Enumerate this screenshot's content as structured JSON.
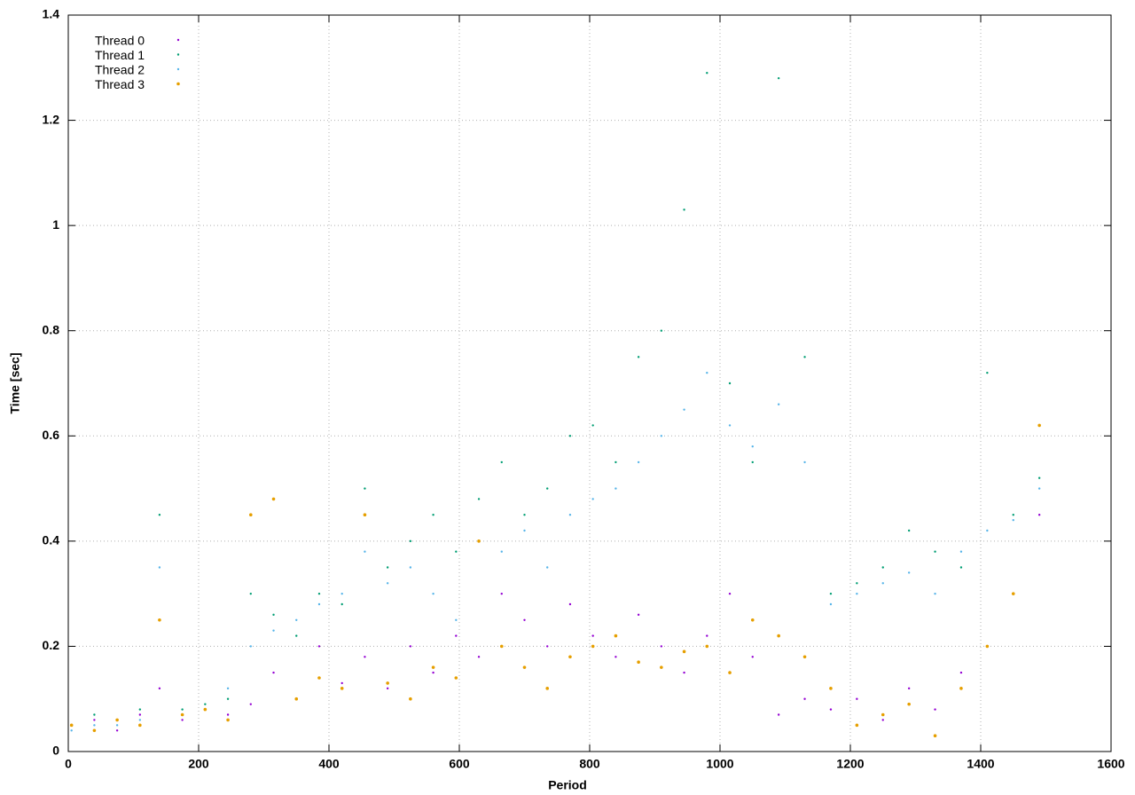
{
  "chart_data": {
    "type": "scatter",
    "xlabel": "Period",
    "ylabel": "Time [sec]",
    "xlim": [
      0,
      1600
    ],
    "xticks": [
      0,
      200,
      400,
      600,
      800,
      1000,
      1200,
      1400,
      1600
    ],
    "ylim": [
      0,
      1.4
    ],
    "yticks": [
      0,
      0.2,
      0.4,
      0.6,
      0.8,
      1,
      1.2,
      1.4
    ],
    "grid": true,
    "legend": "top-left",
    "series": [
      {
        "name": "Thread 0",
        "color": "#9400d3",
        "x": [
          5,
          40,
          75,
          110,
          140,
          175,
          210,
          245,
          280,
          315,
          350,
          385,
          420,
          455,
          490,
          525,
          560,
          595,
          630,
          665,
          700,
          735,
          770,
          805,
          840,
          875,
          910,
          945,
          980,
          1015,
          1050,
          1090,
          1130,
          1170,
          1210,
          1250,
          1290,
          1330,
          1370,
          1410,
          1450,
          1490
        ],
        "values": [
          0.05,
          0.06,
          0.04,
          0.07,
          0.12,
          0.06,
          0.08,
          0.07,
          0.09,
          0.15,
          0.1,
          0.2,
          0.13,
          0.18,
          0.12,
          0.2,
          0.15,
          0.22,
          0.18,
          0.3,
          0.25,
          0.2,
          0.28,
          0.22,
          0.18,
          0.26,
          0.2,
          0.15,
          0.22,
          0.3,
          0.18,
          0.07,
          0.1,
          0.08,
          0.1,
          0.06,
          0.12,
          0.08,
          0.15,
          0.2,
          0.3,
          0.45
        ]
      },
      {
        "name": "Thread 1",
        "color": "#009e73",
        "x": [
          5,
          40,
          75,
          110,
          140,
          175,
          210,
          245,
          280,
          315,
          350,
          385,
          420,
          455,
          490,
          525,
          560,
          595,
          630,
          665,
          700,
          735,
          770,
          805,
          840,
          875,
          910,
          945,
          980,
          1015,
          1050,
          1090,
          1130,
          1170,
          1210,
          1250,
          1290,
          1330,
          1370,
          1410,
          1450,
          1490
        ],
        "values": [
          0.05,
          0.07,
          0.06,
          0.08,
          0.45,
          0.08,
          0.09,
          0.1,
          0.3,
          0.26,
          0.22,
          0.3,
          0.28,
          0.5,
          0.35,
          0.4,
          0.45,
          0.38,
          0.48,
          0.55,
          0.45,
          0.5,
          0.6,
          0.62,
          0.55,
          0.75,
          0.8,
          1.03,
          1.29,
          0.7,
          0.55,
          1.28,
          0.75,
          0.3,
          0.32,
          0.35,
          0.42,
          0.38,
          0.35,
          0.72,
          0.45,
          0.52
        ]
      },
      {
        "name": "Thread 2",
        "color": "#56b4e9",
        "x": [
          5,
          40,
          75,
          110,
          140,
          175,
          210,
          245,
          280,
          315,
          350,
          385,
          420,
          455,
          490,
          525,
          560,
          595,
          630,
          665,
          700,
          735,
          770,
          805,
          840,
          875,
          910,
          945,
          980,
          1015,
          1050,
          1090,
          1130,
          1170,
          1210,
          1250,
          1290,
          1330,
          1370,
          1410,
          1450,
          1490
        ],
        "values": [
          0.04,
          0.05,
          0.05,
          0.06,
          0.35,
          0.07,
          0.08,
          0.12,
          0.2,
          0.23,
          0.25,
          0.28,
          0.3,
          0.38,
          0.32,
          0.35,
          0.3,
          0.25,
          0.4,
          0.38,
          0.42,
          0.35,
          0.45,
          0.48,
          0.5,
          0.55,
          0.6,
          0.65,
          0.72,
          0.62,
          0.58,
          0.66,
          0.55,
          0.28,
          0.3,
          0.32,
          0.34,
          0.3,
          0.38,
          0.42,
          0.44,
          0.5
        ]
      },
      {
        "name": "Thread 3",
        "color": "#e69f00",
        "x": [
          5,
          40,
          75,
          110,
          140,
          175,
          210,
          245,
          280,
          315,
          350,
          385,
          420,
          455,
          490,
          525,
          560,
          595,
          630,
          665,
          700,
          735,
          770,
          805,
          840,
          875,
          910,
          945,
          980,
          1015,
          1050,
          1090,
          1130,
          1170,
          1210,
          1250,
          1290,
          1330,
          1370,
          1410,
          1450,
          1490
        ],
        "values": [
          0.05,
          0.04,
          0.06,
          0.05,
          0.25,
          0.07,
          0.08,
          0.06,
          0.45,
          0.48,
          0.1,
          0.14,
          0.12,
          0.45,
          0.13,
          0.1,
          0.16,
          0.14,
          0.4,
          0.2,
          0.16,
          0.12,
          0.18,
          0.2,
          0.22,
          0.17,
          0.16,
          0.19,
          0.2,
          0.15,
          0.25,
          0.22,
          0.18,
          0.12,
          0.05,
          0.07,
          0.09,
          0.03,
          0.12,
          0.2,
          0.3,
          0.62
        ]
      }
    ]
  }
}
